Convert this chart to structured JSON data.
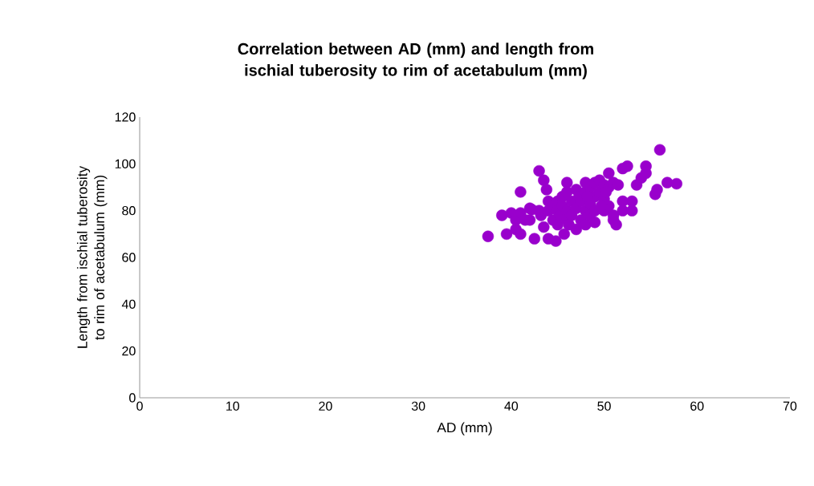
{
  "chart_data": {
    "type": "scatter",
    "title": "Correlation between AD (mm) and length from ischial tuberosity to rim of acetabulum (mm)",
    "xlabel": "AD (mm)",
    "ylabel": "Length from ischial tuberosity to rim of acetabulum (mm)",
    "x": [
      37.5,
      39,
      39.5,
      40,
      40.5,
      40.5,
      41,
      41,
      41,
      41.5,
      42,
      42,
      42.5,
      43,
      43.2,
      43.5,
      43.5,
      43.8,
      44,
      44,
      44,
      44.5,
      44.5,
      44.8,
      45,
      45,
      45,
      45.3,
      45.5,
      45.5,
      46,
      46,
      46,
      46,
      46.5,
      46.5,
      47,
      47,
      47,
      47.3,
      47.5,
      47.5,
      48,
      48,
      48,
      48,
      48.5,
      48.5,
      48.5,
      49,
      49,
      49,
      49,
      49.5,
      49.5,
      50,
      50,
      50,
      50.5,
      50.5,
      50.5,
      51,
      51,
      51,
      51.3,
      51.5,
      52,
      52,
      52,
      52.5,
      53,
      53,
      53.5,
      54,
      54.5,
      54.5,
      55.5,
      55.7,
      56,
      56.8,
      57.8,
      46.2,
      45.7,
      43,
      42.2,
      49.7,
      50.2,
      48.2
    ],
    "values": [
      69,
      78,
      70,
      79,
      72,
      76,
      88,
      70,
      79,
      76,
      81,
      76,
      68,
      97,
      78,
      93,
      73,
      89,
      84,
      80,
      68,
      82,
      76,
      67,
      84,
      80,
      74,
      78,
      86,
      82,
      92,
      88,
      80,
      76,
      84,
      78,
      89,
      81,
      72,
      86,
      76,
      84,
      92,
      88,
      80,
      74,
      90,
      83,
      78,
      92,
      86,
      80,
      75,
      93,
      88,
      91,
      85,
      80,
      96,
      90,
      82,
      92,
      76,
      78,
      74,
      91,
      98,
      84,
      80,
      99,
      84,
      80,
      91,
      94,
      99,
      96,
      87,
      89,
      106,
      92,
      91.5,
      74,
      70,
      80,
      80.5,
      82,
      88,
      86
    ],
    "color": "#9900cc",
    "grid": false,
    "xlim": [
      0,
      70
    ],
    "xticks": [
      0,
      10,
      20,
      30,
      40,
      50,
      60,
      70
    ],
    "ylim": [
      0,
      120
    ],
    "yticks": [
      0,
      20,
      40,
      60,
      80,
      100,
      120
    ]
  }
}
